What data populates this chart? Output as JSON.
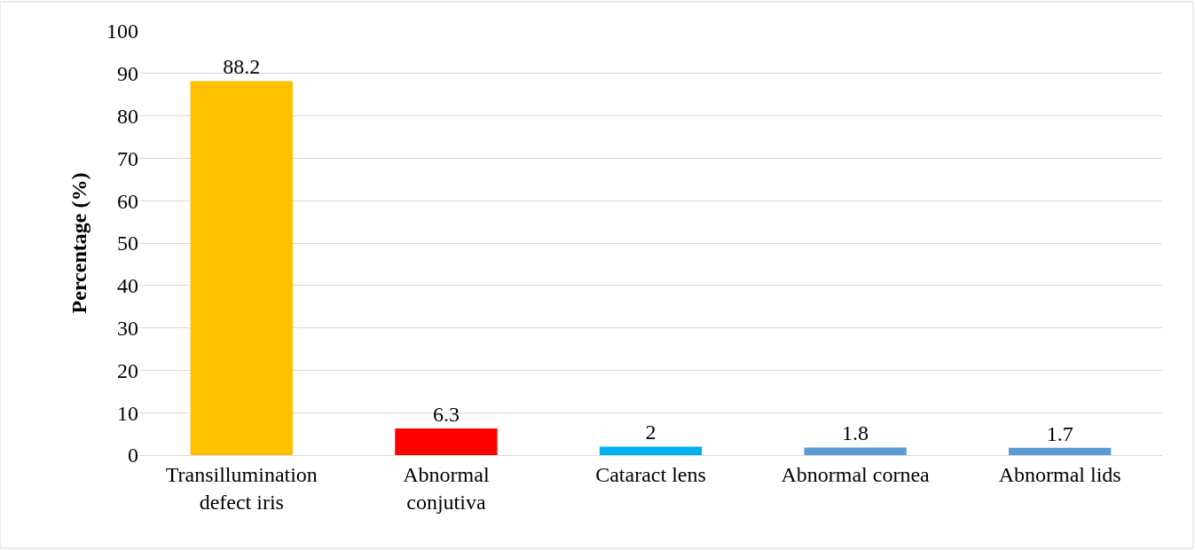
{
  "chart_data": {
    "type": "bar",
    "ylabel": "Percentage (%)",
    "categories": [
      "Transillumination\ndefect iris",
      "Abnormal\nconjutiva",
      "Cataract lens",
      "Abnormal cornea",
      "Abnormal lids"
    ],
    "values": [
      88.2,
      6.3,
      2,
      1.8,
      1.7
    ],
    "colors": [
      "#ffc000",
      "#ff0000",
      "#00b0f0",
      "#5b9bd5",
      "#5b9bd5"
    ],
    "ylim": [
      0,
      100
    ],
    "yticks": [
      0,
      10,
      20,
      30,
      40,
      50,
      60,
      70,
      80,
      90,
      100
    ],
    "grid": "y",
    "data_labels": true,
    "legend": false
  }
}
